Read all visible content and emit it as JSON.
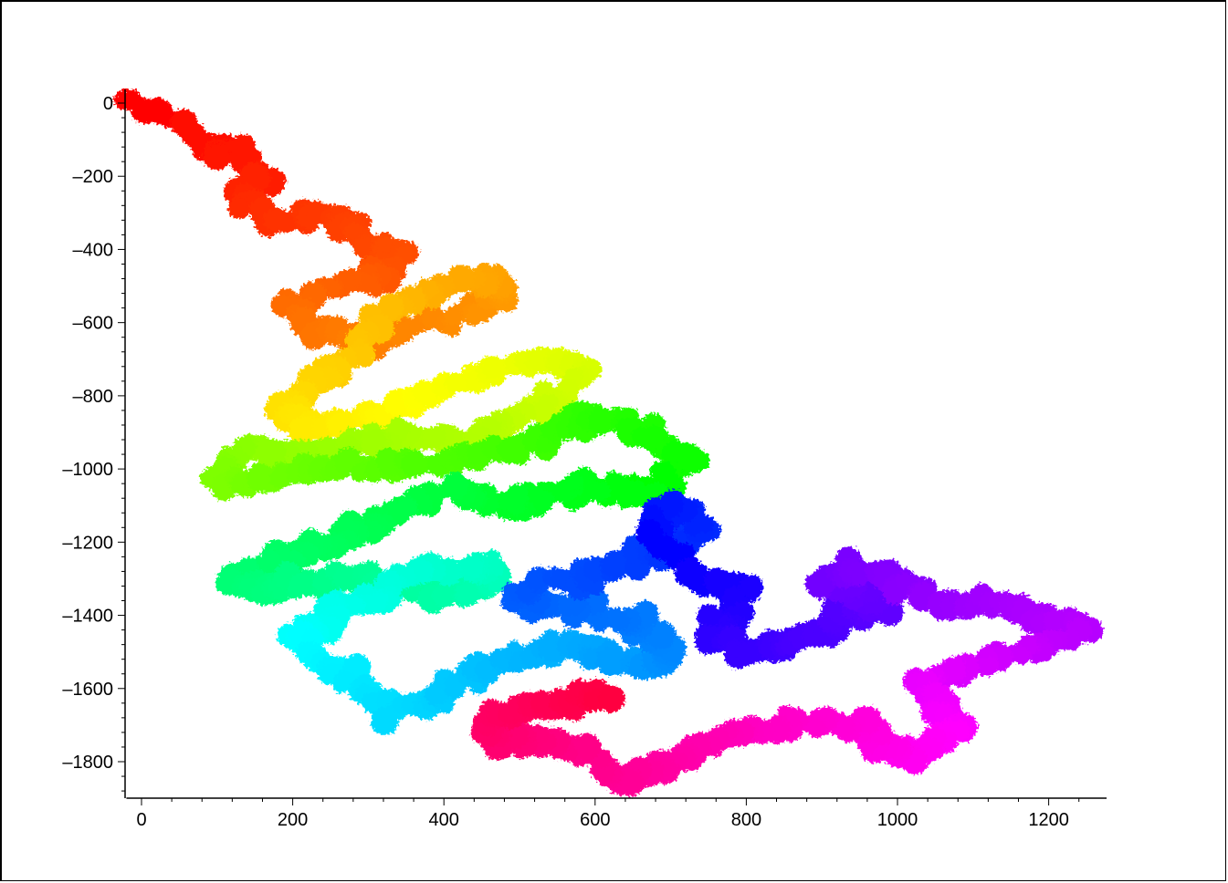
{
  "chart_data": {
    "type": "scatter",
    "title": "",
    "xlabel": "",
    "ylabel": "",
    "xlim": [
      -20,
      1275
    ],
    "ylim": [
      -1900,
      20
    ],
    "grid": false,
    "legend": "none",
    "x_ticks": [
      0,
      200,
      400,
      600,
      800,
      1000,
      1200
    ],
    "y_ticks": [
      0,
      -200,
      -400,
      -600,
      -800,
      -1000,
      -1200,
      -1400,
      -1600,
      -1800
    ],
    "x_tick_labels": [
      "0",
      "200",
      "400",
      "600",
      "800",
      "1000",
      "1200"
    ],
    "y_tick_labels": [
      "0",
      "–200",
      "–400",
      "–600",
      "–800",
      "–1000",
      "–1200",
      "–1400",
      "–1600",
      "–1800"
    ],
    "colormap": "hue rainbow along path (red → orange → yellow → green → cyan → blue → violet → magenta → red)",
    "path": {
      "description": "2D random-walk trace colored by step index",
      "waypoints": [
        [
          0,
          0
        ],
        [
          60,
          -80
        ],
        [
          120,
          -140
        ],
        [
          160,
          -200
        ],
        [
          130,
          -260
        ],
        [
          180,
          -320
        ],
        [
          240,
          -300
        ],
        [
          300,
          -360
        ],
        [
          340,
          -420
        ],
        [
          310,
          -470
        ],
        [
          250,
          -520
        ],
        [
          200,
          -560
        ],
        [
          230,
          -620
        ],
        [
          300,
          -650
        ],
        [
          380,
          -600
        ],
        [
          450,
          -560
        ],
        [
          490,
          -510
        ],
        [
          440,
          -480
        ],
        [
          380,
          -520
        ],
        [
          330,
          -560
        ],
        [
          300,
          -640
        ],
        [
          260,
          -720
        ],
        [
          220,
          -780
        ],
        [
          180,
          -840
        ],
        [
          220,
          -880
        ],
        [
          290,
          -860
        ],
        [
          350,
          -820
        ],
        [
          420,
          -760
        ],
        [
          480,
          -720
        ],
        [
          540,
          -700
        ],
        [
          580,
          -730
        ],
        [
          550,
          -800
        ],
        [
          510,
          -840
        ],
        [
          480,
          -880
        ],
        [
          430,
          -920
        ],
        [
          360,
          -900
        ],
        [
          280,
          -930
        ],
        [
          200,
          -960
        ],
        [
          130,
          -940
        ],
        [
          100,
          -1000
        ],
        [
          130,
          -1050
        ],
        [
          180,
          -1020
        ],
        [
          250,
          -990
        ],
        [
          320,
          -1000
        ],
        [
          380,
          -980
        ],
        [
          450,
          -960
        ],
        [
          520,
          -930
        ],
        [
          560,
          -880
        ],
        [
          600,
          -860
        ],
        [
          650,
          -880
        ],
        [
          690,
          -920
        ],
        [
          720,
          -980
        ],
        [
          700,
          -1040
        ],
        [
          660,
          -1070
        ],
        [
          600,
          -1040
        ],
        [
          550,
          -1070
        ],
        [
          500,
          -1100
        ],
        [
          450,
          -1080
        ],
        [
          410,
          -1060
        ],
        [
          360,
          -1100
        ],
        [
          320,
          -1150
        ],
        [
          270,
          -1190
        ],
        [
          220,
          -1220
        ],
        [
          170,
          -1260
        ],
        [
          120,
          -1300
        ],
        [
          170,
          -1330
        ],
        [
          230,
          -1310
        ],
        [
          280,
          -1290
        ],
        [
          330,
          -1310
        ],
        [
          390,
          -1340
        ],
        [
          440,
          -1330
        ],
        [
          480,
          -1300
        ],
        [
          460,
          -1270
        ],
        [
          400,
          -1260
        ],
        [
          350,
          -1290
        ],
        [
          320,
          -1340
        ],
        [
          270,
          -1380
        ],
        [
          230,
          -1420
        ],
        [
          200,
          -1460
        ],
        [
          230,
          -1510
        ],
        [
          270,
          -1560
        ],
        [
          300,
          -1620
        ],
        [
          340,
          -1660
        ],
        [
          380,
          -1640
        ],
        [
          420,
          -1580
        ],
        [
          470,
          -1540
        ],
        [
          520,
          -1510
        ],
        [
          570,
          -1480
        ],
        [
          620,
          -1520
        ],
        [
          670,
          -1550
        ],
        [
          700,
          -1510
        ],
        [
          680,
          -1460
        ],
        [
          640,
          -1420
        ],
        [
          600,
          -1390
        ],
        [
          540,
          -1380
        ],
        [
          500,
          -1350
        ],
        [
          540,
          -1310
        ],
        [
          600,
          -1290
        ],
        [
          650,
          -1250
        ],
        [
          700,
          -1220
        ],
        [
          740,
          -1180
        ],
        [
          720,
          -1130
        ],
        [
          690,
          -1100
        ],
        [
          670,
          -1150
        ],
        [
          690,
          -1210
        ],
        [
          720,
          -1270
        ],
        [
          760,
          -1320
        ],
        [
          800,
          -1350
        ],
        [
          780,
          -1410
        ],
        [
          760,
          -1460
        ],
        [
          800,
          -1500
        ],
        [
          850,
          -1480
        ],
        [
          900,
          -1450
        ],
        [
          940,
          -1400
        ],
        [
          980,
          -1380
        ],
        [
          940,
          -1330
        ],
        [
          900,
          -1300
        ],
        [
          950,
          -1270
        ],
        [
          1000,
          -1300
        ],
        [
          1040,
          -1340
        ],
        [
          1080,
          -1380
        ],
        [
          1130,
          -1360
        ],
        [
          1180,
          -1400
        ],
        [
          1240,
          -1440
        ],
        [
          1200,
          -1480
        ],
        [
          1150,
          -1500
        ],
        [
          1110,
          -1540
        ],
        [
          1070,
          -1560
        ],
        [
          1030,
          -1590
        ],
        [
          1050,
          -1640
        ],
        [
          1080,
          -1700
        ],
        [
          1050,
          -1750
        ],
        [
          1010,
          -1790
        ],
        [
          980,
          -1750
        ],
        [
          950,
          -1700
        ],
        [
          900,
          -1690
        ],
        [
          850,
          -1700
        ],
        [
          800,
          -1720
        ],
        [
          760,
          -1740
        ],
        [
          720,
          -1780
        ],
        [
          680,
          -1810
        ],
        [
          640,
          -1850
        ],
        [
          600,
          -1800
        ],
        [
          560,
          -1760
        ],
        [
          520,
          -1740
        ],
        [
          480,
          -1750
        ],
        [
          450,
          -1700
        ],
        [
          490,
          -1660
        ],
        [
          540,
          -1650
        ],
        [
          580,
          -1620
        ],
        [
          620,
          -1640
        ]
      ]
    }
  }
}
